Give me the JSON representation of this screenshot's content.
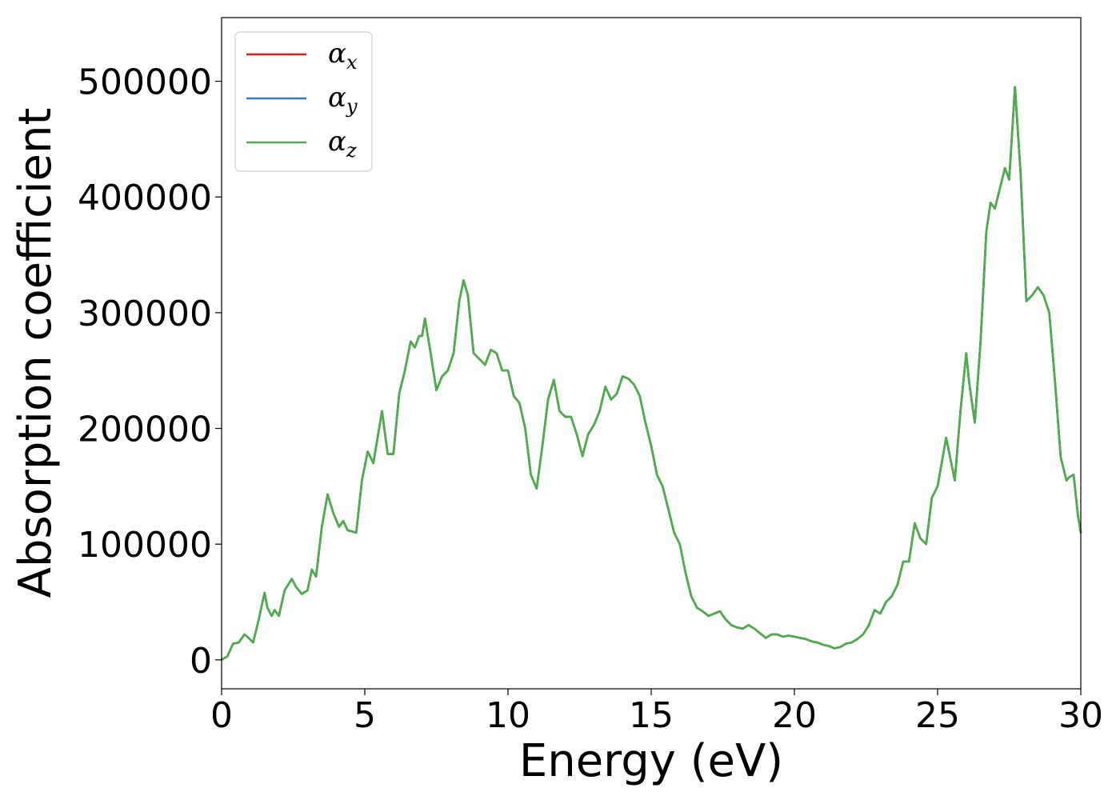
{
  "chart_data": {
    "type": "line",
    "title": "",
    "xlabel": "Energy (eV)",
    "ylabel": "Absorption coefficient",
    "xlim": [
      0,
      30
    ],
    "ylim": [
      -25000,
      555000
    ],
    "xticks": [
      0,
      5,
      10,
      15,
      20,
      25,
      30
    ],
    "yticks": [
      0,
      100000,
      200000,
      300000,
      400000,
      500000
    ],
    "grid": false,
    "legend_position": "top-left",
    "series": [
      {
        "name": "α",
        "subscript": "x",
        "color": "#e41a1c"
      },
      {
        "name": "α",
        "subscript": "y",
        "color": "#377eb8"
      },
      {
        "name": "α",
        "subscript": "z",
        "color": "#4daf4a"
      }
    ],
    "x": [
      0,
      0.2,
      0.4,
      0.6,
      0.8,
      0.9,
      1.1,
      1.3,
      1.5,
      1.6,
      1.75,
      1.85,
      2.0,
      2.2,
      2.45,
      2.6,
      2.8,
      3.0,
      3.15,
      3.3,
      3.5,
      3.7,
      3.9,
      4.1,
      4.25,
      4.4,
      4.7,
      4.9,
      5.1,
      5.3,
      5.5,
      5.6,
      5.8,
      6.0,
      6.2,
      6.4,
      6.6,
      6.75,
      6.9,
      7.0,
      7.1,
      7.3,
      7.5,
      7.7,
      7.9,
      8.1,
      8.3,
      8.45,
      8.6,
      8.8,
      9.0,
      9.2,
      9.4,
      9.6,
      9.8,
      10.0,
      10.2,
      10.4,
      10.6,
      10.8,
      11.0,
      11.2,
      11.4,
      11.6,
      11.8,
      12.0,
      12.2,
      12.4,
      12.6,
      12.8,
      13.0,
      13.2,
      13.4,
      13.6,
      13.8,
      14.0,
      14.2,
      14.4,
      14.6,
      14.8,
      15.0,
      15.2,
      15.4,
      15.6,
      15.8,
      16.0,
      16.2,
      16.4,
      16.6,
      16.8,
      17.0,
      17.2,
      17.4,
      17.6,
      17.8,
      18.0,
      18.2,
      18.4,
      18.6,
      18.8,
      19.0,
      19.2,
      19.4,
      19.6,
      19.8,
      20.0,
      20.2,
      20.4,
      20.6,
      20.8,
      21.0,
      21.2,
      21.4,
      21.6,
      21.8,
      22.0,
      22.2,
      22.4,
      22.6,
      22.8,
      23.0,
      23.2,
      23.4,
      23.6,
      23.8,
      24.0,
      24.2,
      24.4,
      24.6,
      24.8,
      25.0,
      25.3,
      25.6,
      25.8,
      26.0,
      26.1,
      26.3,
      26.5,
      26.7,
      26.85,
      27.0,
      27.2,
      27.35,
      27.5,
      27.7,
      27.9,
      28.1,
      28.3,
      28.5,
      28.7,
      28.9,
      29.1,
      29.3,
      29.5,
      29.6,
      29.75,
      29.9,
      30.0
    ],
    "values": [
      0,
      3000,
      14000,
      15000,
      22000,
      20000,
      15000,
      35000,
      58000,
      45000,
      38000,
      43000,
      38000,
      60000,
      70000,
      63000,
      57000,
      60000,
      78000,
      72000,
      115000,
      143000,
      127000,
      115000,
      120000,
      112000,
      110000,
      155000,
      180000,
      170000,
      200000,
      215000,
      178000,
      178000,
      230000,
      250000,
      275000,
      270000,
      280000,
      280000,
      295000,
      265000,
      233000,
      245000,
      250000,
      265000,
      310000,
      328000,
      315000,
      265000,
      260000,
      255000,
      268000,
      265000,
      250000,
      250000,
      228000,
      222000,
      200000,
      160000,
      148000,
      185000,
      225000,
      242000,
      215000,
      210000,
      210000,
      195000,
      176000,
      195000,
      203000,
      215000,
      236000,
      225000,
      230000,
      245000,
      243000,
      238000,
      228000,
      205000,
      185000,
      160000,
      150000,
      130000,
      110000,
      100000,
      75000,
      55000,
      45000,
      42000,
      38000,
      40000,
      42000,
      35000,
      30000,
      28000,
      27000,
      30000,
      27000,
      23000,
      19000,
      22000,
      22000,
      20000,
      21000,
      20000,
      19000,
      18000,
      16000,
      15000,
      13000,
      12000,
      10000,
      11000,
      14000,
      15000,
      18000,
      22000,
      30000,
      43000,
      40000,
      50000,
      55000,
      65000,
      85000,
      85000,
      118000,
      105000,
      100000,
      140000,
      150000,
      192000,
      155000,
      215000,
      265000,
      240000,
      205000,
      275000,
      370000,
      395000,
      390000,
      410000,
      425000,
      415000,
      495000,
      420000,
      310000,
      315000,
      322000,
      315000,
      300000,
      240000,
      175000,
      155000,
      158000,
      160000,
      125000,
      110000
    ]
  }
}
